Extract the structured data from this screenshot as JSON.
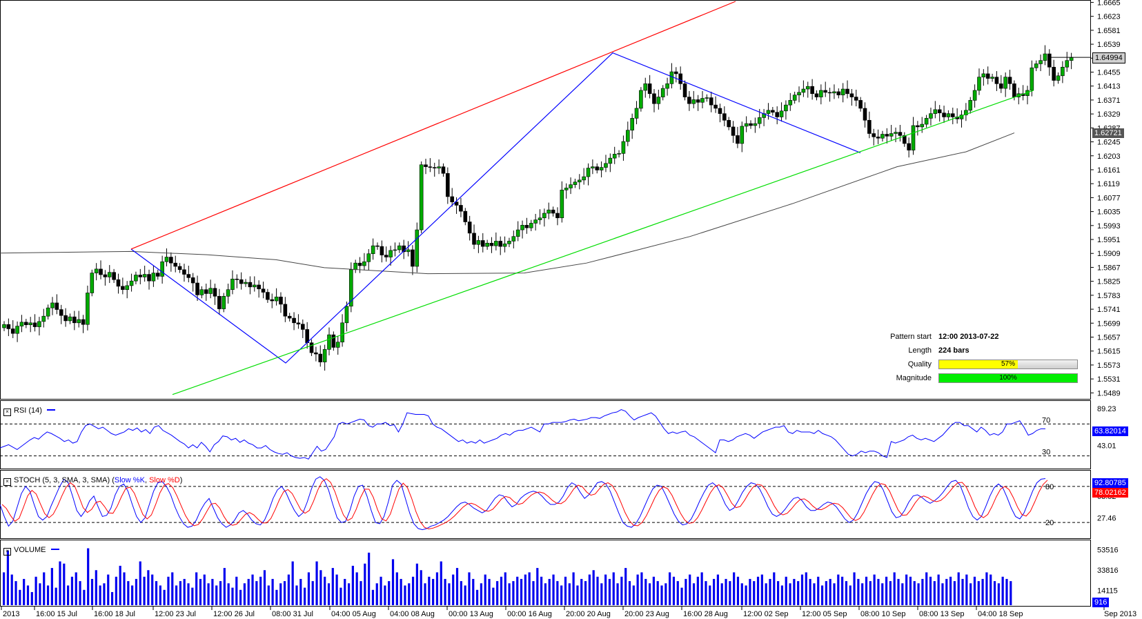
{
  "chart_data": {
    "type": "candlestick",
    "symbol_pair_note": "",
    "y_ticks": [
      "1.6665",
      "1.6623",
      "1.6581",
      "1.6539",
      "1.6497",
      "1.6455",
      "1.6413",
      "1.6371",
      "1.6329",
      "1.6287",
      "1.6245",
      "1.6203",
      "1.6161",
      "1.6119",
      "1.6077",
      "1.6035",
      "1.5993",
      "1.5951",
      "1.5909",
      "1.5867",
      "1.5825",
      "1.5783",
      "1.5741",
      "1.5699",
      "1.5657",
      "1.5615",
      "1.5573",
      "1.5531",
      "1.5489"
    ],
    "y_range": [
      1.5471,
      1.6668
    ],
    "x_ticks": [
      "2013",
      "16:00 15 Jul",
      "16:00 18 Jul",
      "12:00 23 Jul",
      "12:00 26 Jul",
      "08:00 31 Jul",
      "04:00 05 Aug",
      "04:00 08 Aug",
      "00:00 13 Aug",
      "00:00 16 Aug",
      "20:00 20 Aug",
      "20:00 23 Aug",
      "16:00 28 Aug",
      "12:00 02 Sep",
      "12:00 05 Sep",
      "08:00 10 Sep",
      "08:00 13 Sep",
      "04:00 18 Sep",
      "Sep 2013"
    ],
    "current_price": "1.64994",
    "ma_price": "1.62721",
    "candles_close": [
      1.5695,
      1.5682,
      1.5668,
      1.569,
      1.5702,
      1.5694,
      1.57,
      1.5688,
      1.5704,
      1.572,
      1.5745,
      1.576,
      1.574,
      1.5722,
      1.5706,
      1.5718,
      1.57,
      1.571,
      1.5695,
      1.579,
      1.585,
      1.5862,
      1.5845,
      1.5838,
      1.5852,
      1.583,
      1.581,
      1.58,
      1.5812,
      1.5826,
      1.5844,
      1.5838,
      1.5846,
      1.5826,
      1.585,
      1.584,
      1.5884,
      1.5898,
      1.588,
      1.587,
      1.586,
      1.5846,
      1.5836,
      1.582,
      1.5784,
      1.58,
      1.5788,
      1.5804,
      1.578,
      1.5742,
      1.578,
      1.58,
      1.5832,
      1.583,
      1.5818,
      1.5822,
      1.5808,
      1.5814,
      1.5802,
      1.5792,
      1.577,
      1.5766,
      1.5778,
      1.5756,
      1.572,
      1.5714,
      1.57,
      1.5696,
      1.568,
      1.564,
      1.561,
      1.5606,
      1.5582,
      1.562,
      1.5664,
      1.5626,
      1.5642,
      1.57,
      1.575,
      1.586,
      1.588,
      1.5872,
      1.5884,
      1.5908,
      1.5932,
      1.593,
      1.5904,
      1.5898,
      1.5918,
      1.592,
      1.5932,
      1.5914,
      1.592,
      1.587,
      1.598,
      1.6176,
      1.617,
      1.6168,
      1.6166,
      1.617,
      1.615,
      1.608,
      1.6064,
      1.6054,
      1.6036,
      1.6004,
      1.597,
      1.5936,
      1.5948,
      1.593,
      1.594,
      1.5932,
      1.5946,
      1.593,
      1.5938,
      1.5946,
      1.596,
      1.598,
      1.5994,
      1.5986,
      1.6,
      1.601,
      1.6016,
      1.603,
      1.604,
      1.603,
      1.6016,
      1.61,
      1.6106,
      1.6116,
      1.6124,
      1.613,
      1.614,
      1.6166,
      1.617,
      1.616,
      1.6168,
      1.618,
      1.6196,
      1.6208,
      1.621,
      1.6246,
      1.628,
      1.6316,
      1.6346,
      1.64,
      1.642,
      1.639,
      1.636,
      1.638,
      1.6406,
      1.642,
      1.6456,
      1.645,
      1.642,
      1.638,
      1.636,
      1.6372,
      1.6364,
      1.6376,
      1.6378,
      1.6356,
      1.6346,
      1.633,
      1.631,
      1.629,
      1.6264,
      1.624,
      1.6292,
      1.63,
      1.6294,
      1.63,
      1.6318,
      1.633,
      1.634,
      1.6334,
      1.632,
      1.6338,
      1.6356,
      1.637,
      1.6386,
      1.6394,
      1.6404,
      1.6412,
      1.639,
      1.638,
      1.64,
      1.6394,
      1.6392,
      1.6396,
      1.6386,
      1.6404,
      1.639,
      1.638,
      1.637,
      1.6346,
      1.631,
      1.627,
      1.626,
      1.6256,
      1.6268,
      1.6262,
      1.627,
      1.6274,
      1.6264,
      1.624,
      1.622,
      1.6294,
      1.629,
      1.6298,
      1.6316,
      1.633,
      1.6342,
      1.6332,
      1.632,
      1.633,
      1.632,
      1.6314,
      1.6326,
      1.634,
      1.637,
      1.64,
      1.644,
      1.645,
      1.6436,
      1.644,
      1.642,
      1.6406,
      1.644,
      1.642,
      1.638,
      1.639,
      1.6384,
      1.64,
      1.6468,
      1.648,
      1.649,
      1.651,
      1.647,
      1.643,
      1.6444,
      1.647,
      1.649,
      1.6499
    ],
    "candles_open": [],
    "ma200": [
      [
        0,
        1.591
      ],
      [
        190,
        1.5915
      ],
      [
        300,
        1.5905
      ],
      [
        400,
        1.589
      ],
      [
        470,
        1.5866
      ],
      [
        620,
        1.5848
      ],
      [
        760,
        1.585
      ],
      [
        850,
        1.588
      ],
      [
        1000,
        1.596
      ],
      [
        1150,
        1.606
      ],
      [
        1300,
        1.617
      ],
      [
        1400,
        1.6215
      ],
      [
        1470,
        1.6272
      ]
    ],
    "pattern_lines": {
      "zigzag": [
        [
          190,
          1.5922
        ],
        [
          414,
          1.5579
        ],
        [
          888,
          1.6513
        ],
        [
          1247,
          1.6212
        ]
      ],
      "upper_channel": [
        [
          190,
          1.5922
        ],
        [
          1066,
          1.6668
        ]
      ],
      "lower_channel": [
        [
          250,
          1.5484
        ],
        [
          1498,
          1.64
        ]
      ]
    },
    "pattern_info": {
      "pattern_start_label": "Pattern start",
      "pattern_start": "12:00 2013-07-22",
      "length_label": "Length",
      "length": "224 bars",
      "quality_label": "Quality",
      "quality": 57,
      "quality_text": "57%",
      "magnitude_label": "Magnitude",
      "magnitude": 100,
      "magnitude_text": "100%"
    },
    "rsi": {
      "label": "RSI (14)",
      "y_ticks": [
        "89.23",
        "43.01"
      ],
      "levels": [
        "70",
        "30"
      ],
      "current": "63.82014",
      "values": [
        40,
        42,
        44,
        41,
        38,
        42,
        46,
        50,
        53,
        51,
        56,
        60,
        58,
        55,
        52,
        48,
        50,
        46,
        48,
        60,
        68,
        70,
        67,
        64,
        66,
        62,
        58,
        56,
        58,
        60,
        64,
        62,
        65,
        60,
        63,
        58,
        66,
        68,
        62,
        59,
        56,
        52,
        48,
        45,
        40,
        44,
        40,
        47,
        42,
        35,
        44,
        48,
        55,
        54,
        50,
        52,
        47,
        50,
        46,
        44,
        40,
        40,
        43,
        38,
        35,
        33,
        32,
        34,
        30,
        28,
        27,
        28,
        26,
        34,
        42,
        36,
        38,
        46,
        54,
        70,
        72,
        70,
        72,
        74,
        76,
        75,
        68,
        66,
        70,
        70,
        72,
        68,
        69,
        60,
        70,
        84,
        83,
        82,
        82,
        82,
        80,
        70,
        66,
        64,
        60,
        56,
        52,
        48,
        50,
        46,
        48,
        46,
        50,
        46,
        48,
        50,
        52,
        56,
        58,
        56,
        60,
        62,
        62,
        64,
        66,
        63,
        60,
        70,
        70,
        72,
        72,
        72,
        73,
        75,
        76,
        74,
        75,
        76,
        78,
        78,
        77,
        80,
        82,
        84,
        85,
        88,
        86,
        80,
        75,
        78,
        80,
        82,
        84,
        80,
        72,
        64,
        58,
        60,
        58,
        60,
        61,
        56,
        54,
        50,
        46,
        42,
        38,
        34,
        50,
        50,
        48,
        50,
        54,
        56,
        58,
        56,
        52,
        56,
        60,
        62,
        64,
        66,
        66,
        68,
        60,
        58,
        62,
        60,
        60,
        60,
        58,
        62,
        58,
        56,
        54,
        50,
        44,
        38,
        32,
        30,
        32,
        36,
        34,
        36,
        36,
        34,
        30,
        28,
        48,
        46,
        48,
        50,
        54,
        56,
        52,
        50,
        52,
        50,
        48,
        52,
        56,
        62,
        68,
        72,
        72,
        68,
        68,
        64,
        60,
        66,
        62,
        56,
        58,
        56,
        60,
        70,
        70,
        72,
        74,
        66,
        56,
        58,
        62,
        64,
        64
      ]
    },
    "stoch": {
      "label": "STOCH (5, 3, SMA, 3, SMA)",
      "k_label": "Slow %K",
      "d_label": "Slow %D",
      "y_ticks": [
        "63.52",
        "27.46"
      ],
      "levels": [
        "80",
        "20"
      ],
      "current_k": "92.80785",
      "current_d": "78.02162",
      "k": [
        50,
        30,
        14,
        22,
        45,
        68,
        80,
        72,
        50,
        30,
        24,
        30,
        48,
        64,
        80,
        92,
        86,
        64,
        40,
        30,
        40,
        56,
        64,
        46,
        30,
        32,
        44,
        66,
        80,
        84,
        72,
        50,
        30,
        20,
        28,
        50,
        72,
        86,
        88,
        80,
        66,
        46,
        30,
        18,
        12,
        14,
        24,
        40,
        52,
        60,
        44,
        28,
        18,
        12,
        16,
        24,
        36,
        40,
        34,
        24,
        18,
        16,
        24,
        40,
        60,
        74,
        80,
        70,
        54,
        40,
        30,
        36,
        54,
        76,
        92,
        96,
        90,
        74,
        50,
        28,
        20,
        22,
        40,
        64,
        80,
        82,
        64,
        40,
        20,
        18,
        30,
        54,
        82,
        90,
        84,
        60,
        36,
        18,
        10,
        8,
        10,
        14,
        16,
        20,
        24,
        30,
        38,
        46,
        52,
        54,
        50,
        44,
        40,
        36,
        40,
        50,
        60,
        66,
        64,
        54,
        46,
        50,
        60,
        66,
        70,
        72,
        70,
        64,
        56,
        50,
        50,
        54,
        64,
        78,
        86,
        82,
        70,
        60,
        66,
        76,
        86,
        88,
        84,
        72,
        54,
        36,
        20,
        14,
        12,
        18,
        30,
        46,
        62,
        76,
        82,
        80,
        66,
        50,
        34,
        22,
        16,
        18,
        26,
        40,
        56,
        70,
        82,
        86,
        80,
        66,
        50,
        40,
        44,
        56,
        70,
        80,
        86,
        84,
        76,
        62,
        46,
        34,
        30,
        34,
        42,
        52,
        60,
        62,
        56,
        46,
        40,
        40,
        44,
        50,
        54,
        52,
        46,
        36,
        26,
        20,
        24,
        36,
        52,
        68,
        80,
        88,
        86,
        74,
        56,
        38,
        28,
        30,
        40,
        54,
        64,
        66,
        62,
        56,
        52,
        56,
        62,
        70,
        80,
        88,
        90,
        82,
        64,
        44,
        30,
        24,
        30,
        46,
        64,
        78,
        84,
        78,
        62,
        44,
        30,
        26,
        36,
        54,
        72,
        86,
        92,
        93
      ],
      "d": []
    },
    "volume": {
      "label": "VOLUME",
      "y_ticks": [
        "53516",
        "33816",
        "14115"
      ],
      "current": "916",
      "values": [
        30,
        50,
        28,
        22,
        14,
        24,
        18,
        12,
        26,
        20,
        30,
        18,
        34,
        16,
        40,
        38,
        18,
        26,
        30,
        22,
        14,
        52,
        24,
        32,
        18,
        20,
        28,
        12,
        26,
        36,
        30,
        22,
        18,
        24,
        40,
        26,
        32,
        28,
        22,
        18,
        14,
        26,
        30,
        18,
        22,
        24,
        20,
        16,
        30,
        24,
        28,
        20,
        24,
        18,
        22,
        34,
        20,
        16,
        26,
        14,
        20,
        24,
        28,
        22,
        26,
        32,
        18,
        24,
        14,
        20,
        22,
        28,
        40,
        18,
        24,
        16,
        30,
        22,
        40,
        32,
        26,
        20,
        34,
        28,
        16,
        24,
        20,
        36,
        30,
        22,
        38,
        48,
        14,
        20,
        26,
        18,
        22,
        42,
        30,
        24,
        18,
        20,
        26,
        38,
        32,
        20,
        26,
        24,
        30,
        40,
        24,
        20,
        28,
        34,
        22,
        18,
        30,
        24,
        14,
        20,
        28,
        24,
        16,
        22,
        26,
        30,
        20,
        22,
        26,
        24,
        28,
        30,
        22,
        34,
        26,
        20,
        24,
        28,
        22,
        18,
        26,
        20,
        30,
        18,
        24,
        22,
        28,
        32,
        26,
        20,
        28,
        24,
        30,
        20,
        26,
        34,
        22,
        18,
        28,
        30,
        24,
        20,
        26,
        22,
        18,
        20,
        30,
        26,
        22,
        16,
        24,
        28,
        20,
        26,
        30,
        22,
        18,
        24,
        28,
        20,
        24,
        22,
        30,
        26,
        20,
        18,
        24,
        22,
        26,
        28,
        20,
        24,
        30,
        22,
        18,
        26,
        20,
        24,
        22,
        28,
        30,
        24,
        20,
        26,
        18,
        22,
        24,
        20,
        28,
        26,
        22,
        18,
        30,
        24,
        20,
        26,
        22,
        28,
        24,
        20,
        26,
        22,
        30,
        24,
        20,
        28,
        26,
        22,
        20,
        24,
        30,
        26,
        22,
        28,
        20,
        24,
        26,
        22,
        30,
        24,
        28,
        20,
        26,
        22,
        24,
        30,
        28,
        22,
        20,
        26,
        24,
        22
      ]
    }
  }
}
